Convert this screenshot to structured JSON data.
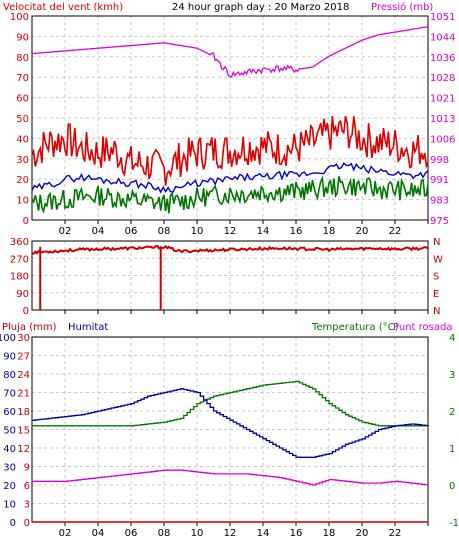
{
  "header": {
    "left_label": "Velocitat del vent (kmh)",
    "title": "24 hour graph day : 20 Marzo 2018",
    "right_label": "Pressió (mb)"
  },
  "x_axis": {
    "tick_labels": [
      "02",
      "04",
      "06",
      "08",
      "10",
      "12",
      "14",
      "16",
      "18",
      "20",
      "22"
    ]
  },
  "colors": {
    "wind_gust": "#dd0000",
    "wind_avg": "#0000cc",
    "wind_min": "#007700",
    "pressure": "#dd00dd",
    "direction": "#cc0000",
    "rain": "#cc0000",
    "humidity": "#0000aa",
    "temperature": "#007700",
    "dewpoint": "#dd00dd"
  },
  "bottom_header": {
    "rain_label": "Pluja (mm)",
    "humidity_label": "Humitat",
    "temp_label": "Temperatura (°C)",
    "dew_label": "Punt rosada"
  },
  "chart_data": [
    {
      "type": "line",
      "panel": "wind_pressure",
      "xlabel": "",
      "x": [
        0,
        1,
        2,
        3,
        4,
        5,
        6,
        7,
        8,
        9,
        10,
        11,
        12,
        13,
        14,
        15,
        16,
        17,
        18,
        19,
        20,
        21,
        22,
        23,
        24
      ],
      "ylim_left": [
        0,
        100
      ],
      "y_ticks_left": [
        "0",
        "10",
        "20",
        "30",
        "40",
        "50",
        "60",
        "70",
        "80",
        "90",
        "100"
      ],
      "ylim_right": [
        975,
        1051
      ],
      "y_ticks_right": [
        "975",
        "983",
        "991",
        "998",
        "1006",
        "1013",
        "1021",
        "1028",
        "1036",
        "1044",
        "1051"
      ],
      "series": [
        {
          "name": "Velocitat del vent",
          "axis": "left",
          "role": "gust",
          "values": [
            32,
            38,
            40,
            35,
            33,
            34,
            28,
            27,
            25,
            30,
            33,
            34,
            34,
            36,
            36,
            35,
            35,
            38,
            42,
            44,
            40,
            38,
            37,
            34,
            35
          ]
        },
        {
          "name": "Velocitat del vent",
          "axis": "left",
          "role": "avg",
          "values": [
            15,
            17,
            20,
            21,
            20,
            19,
            18,
            17,
            15,
            16,
            18,
            19,
            20,
            21,
            21,
            22,
            22,
            23,
            25,
            27,
            25,
            24,
            23,
            22,
            23
          ]
        },
        {
          "name": "Velocitat del vent",
          "axis": "left",
          "role": "min",
          "values": [
            8,
            9,
            10,
            11,
            12,
            11,
            10,
            9,
            8,
            9,
            11,
            12,
            13,
            13,
            14,
            14,
            14,
            15,
            16,
            17,
            16,
            15,
            15,
            14,
            15
          ]
        },
        {
          "name": "Pressió",
          "axis": "right",
          "values": [
            1037,
            1037.5,
            1038,
            1038.5,
            1039,
            1039.5,
            1040,
            1040.5,
            1041,
            1040,
            1039,
            1036,
            1029,
            1030,
            1031,
            1031.5,
            1031,
            1032,
            1036,
            1039,
            1042,
            1044,
            1045,
            1046,
            1047
          ]
        }
      ]
    },
    {
      "type": "scatter",
      "panel": "wind_direction",
      "x": [
        0,
        1,
        2,
        3,
        4,
        5,
        6,
        7,
        8,
        9,
        10,
        11,
        12,
        13,
        14,
        15,
        16,
        17,
        18,
        19,
        20,
        21,
        22,
        23,
        24
      ],
      "ylim": [
        0,
        360
      ],
      "y_ticks_left": [
        "0",
        "90",
        "180",
        "270",
        "360"
      ],
      "right_labels": [
        "N",
        "W",
        "S",
        "E",
        "N"
      ],
      "values": [
        300,
        305,
        310,
        315,
        318,
        320,
        322,
        325,
        330,
        305,
        310,
        312,
        315,
        318,
        320,
        322,
        320,
        318,
        315,
        318,
        320,
        322,
        318,
        320,
        322
      ],
      "spikes": [
        {
          "x": 0.5,
          "value": 0
        },
        {
          "x": 7.8,
          "value": 0
        }
      ]
    },
    {
      "type": "line",
      "panel": "rain_humidity_temperature",
      "x": [
        0,
        1,
        2,
        3,
        4,
        5,
        6,
        7,
        8,
        9,
        10,
        11,
        12,
        13,
        14,
        15,
        16,
        17,
        18,
        19,
        20,
        21,
        22,
        23,
        24
      ],
      "ylim_left": [
        0,
        100
      ],
      "y_ticks_left": [
        "0",
        "10",
        "20",
        "30",
        "40",
        "50",
        "60",
        "70",
        "80",
        "90",
        "100"
      ],
      "y_ticks_rain": [
        "0",
        "3",
        "6",
        "9",
        "12",
        "15",
        "18",
        "21",
        "24",
        "27",
        "30"
      ],
      "ylim_right": [
        -1,
        4
      ],
      "y_ticks_right": [
        "-1",
        "0",
        "1",
        "2",
        "3",
        "4"
      ],
      "series": [
        {
          "name": "Humitat",
          "axis": "left",
          "values": [
            55,
            56,
            57,
            58,
            60,
            62,
            64,
            68,
            70,
            72,
            70,
            60,
            55,
            50,
            45,
            40,
            35,
            35,
            37,
            42,
            45,
            50,
            52,
            53,
            52
          ]
        },
        {
          "name": "Temperatura (°C)",
          "axis": "right",
          "values": [
            1.6,
            1.6,
            1.6,
            1.6,
            1.6,
            1.6,
            1.6,
            1.65,
            1.7,
            1.8,
            2.2,
            2.4,
            2.5,
            2.6,
            2.7,
            2.75,
            2.8,
            2.6,
            2.2,
            1.9,
            1.7,
            1.6,
            1.6,
            1.6,
            1.6
          ]
        },
        {
          "name": "Punt rosada",
          "axis": "right",
          "values": [
            0.1,
            0.1,
            0.1,
            0.15,
            0.2,
            0.25,
            0.3,
            0.35,
            0.4,
            0.4,
            0.35,
            0.3,
            0.3,
            0.3,
            0.25,
            0.2,
            0.1,
            0.0,
            0.15,
            0.1,
            0.05,
            0.05,
            0.1,
            0.05,
            0.0
          ]
        },
        {
          "name": "Pluja (mm)",
          "axis": "left",
          "values": [
            0,
            0,
            0,
            0,
            0,
            0,
            0,
            0,
            0,
            0,
            0,
            0,
            0,
            0,
            0,
            0,
            0,
            0,
            0,
            0,
            0,
            0,
            0,
            0,
            0
          ]
        }
      ]
    }
  ]
}
